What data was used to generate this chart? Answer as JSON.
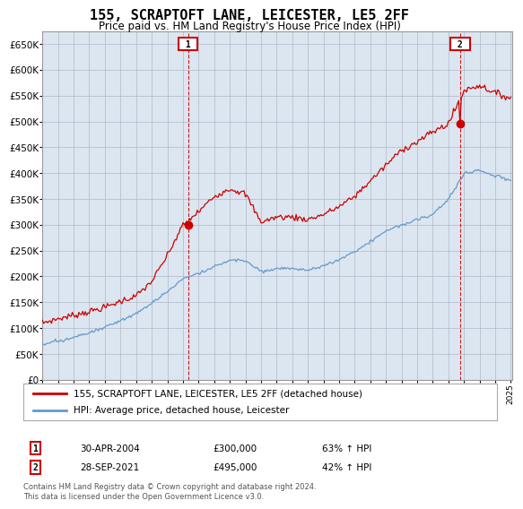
{
  "title": "155, SCRAPTOFT LANE, LEICESTER, LE5 2FF",
  "subtitle": "Price paid vs. HM Land Registry's House Price Index (HPI)",
  "title_fontsize": 11,
  "subtitle_fontsize": 8.5,
  "background_color": "#ffffff",
  "plot_bg_color": "#dce6f0",
  "grid_color": "#b0b8c8",
  "ylim": [
    0,
    675000
  ],
  "yticks": [
    0,
    50000,
    100000,
    150000,
    200000,
    250000,
    300000,
    350000,
    400000,
    450000,
    500000,
    550000,
    600000,
    650000
  ],
  "legend_label_red": "155, SCRAPTOFT LANE, LEICESTER, LE5 2FF (detached house)",
  "legend_label_blue": "HPI: Average price, detached house, Leicester",
  "annotation1_date": "30-APR-2004",
  "annotation1_price": "£300,000",
  "annotation1_hpi": "63% ↑ HPI",
  "annotation2_date": "28-SEP-2021",
  "annotation2_price": "£495,000",
  "annotation2_hpi": "42% ↑ HPI",
  "footer": "Contains HM Land Registry data © Crown copyright and database right 2024.\nThis data is licensed under the Open Government Licence v3.0.",
  "red_color": "#cc0000",
  "blue_color": "#6699cc",
  "annot_box_color": "#cc0000"
}
